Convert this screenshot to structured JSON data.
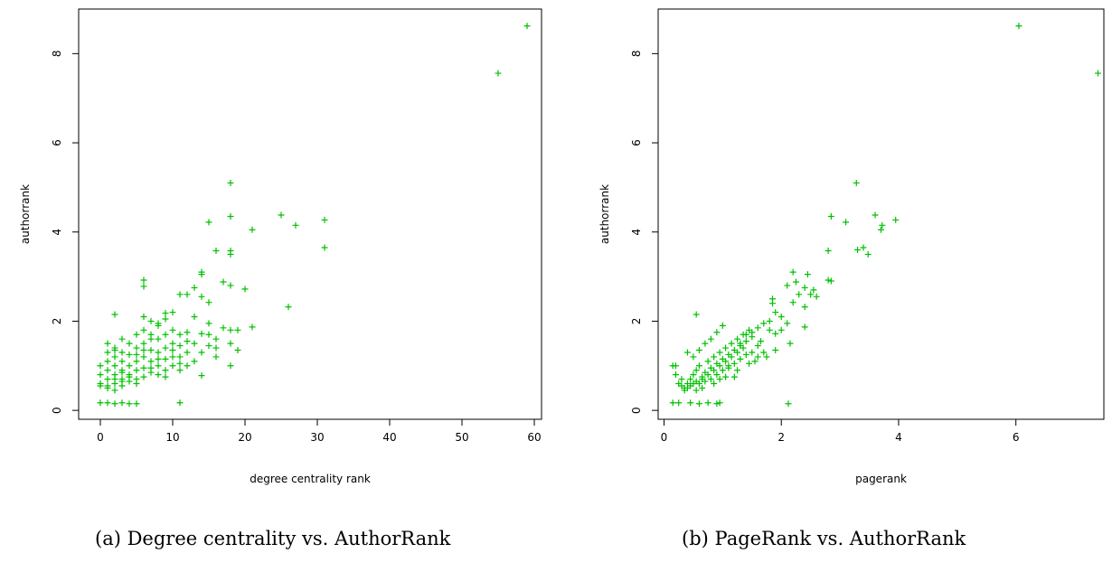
{
  "colors": {
    "points": "#00c000",
    "axis": "#000000",
    "background": "#ffffff"
  },
  "captions": [
    "(a) Degree centrality vs. AuthorRank",
    "(b) PageRank vs. AuthorRank"
  ],
  "chart_data": [
    {
      "type": "scatter",
      "marker": "+",
      "title": "",
      "xlabel": "degree centrality rank",
      "ylabel": "authorrank",
      "xlim": [
        -3,
        61
      ],
      "ylim": [
        -0.2,
        9
      ],
      "xticks": [
        0,
        10,
        20,
        30,
        40,
        50,
        60
      ],
      "yticks": [
        0,
        2,
        4,
        6,
        8
      ],
      "points": [
        [
          59,
          8.62
        ],
        [
          55,
          7.56
        ],
        [
          18,
          5.1
        ],
        [
          25,
          4.38
        ],
        [
          31,
          4.27
        ],
        [
          18,
          4.35
        ],
        [
          15,
          4.22
        ],
        [
          27,
          4.15
        ],
        [
          21,
          4.05
        ],
        [
          31,
          3.65
        ],
        [
          16,
          3.58
        ],
        [
          18,
          3.58
        ],
        [
          18,
          3.5
        ],
        [
          14,
          3.1
        ],
        [
          14,
          3.05
        ],
        [
          6,
          2.92
        ],
        [
          6,
          2.78
        ],
        [
          17,
          2.88
        ],
        [
          18,
          2.8
        ],
        [
          13,
          2.75
        ],
        [
          12,
          2.6
        ],
        [
          20,
          2.72
        ],
        [
          11,
          2.6
        ],
        [
          14,
          2.55
        ],
        [
          15,
          2.42
        ],
        [
          26,
          2.32
        ],
        [
          10,
          2.2
        ],
        [
          9,
          2.18
        ],
        [
          2,
          2.15
        ],
        [
          6,
          2.1
        ],
        [
          13,
          2.1
        ],
        [
          7,
          2.0
        ],
        [
          8,
          1.95
        ],
        [
          15,
          1.95
        ],
        [
          21,
          1.87
        ],
        [
          17,
          1.85
        ],
        [
          18,
          1.8
        ],
        [
          19,
          1.8
        ],
        [
          12,
          1.75
        ],
        [
          14,
          1.72
        ],
        [
          11,
          1.7
        ],
        [
          16,
          1.6
        ],
        [
          18,
          1.5
        ],
        [
          15,
          1.45
        ],
        [
          19,
          1.35
        ],
        [
          12,
          1.3
        ],
        [
          14,
          1.3
        ],
        [
          16,
          1.2
        ],
        [
          13,
          1.1
        ],
        [
          18,
          1.0
        ],
        [
          11,
          0.9
        ],
        [
          14,
          0.78
        ],
        [
          11,
          0.17
        ],
        [
          5,
          0.15
        ],
        [
          0,
          0.17
        ],
        [
          1,
          0.17
        ],
        [
          2,
          0.15
        ],
        [
          3,
          0.17
        ],
        [
          4,
          0.15
        ],
        [
          0,
          1.0
        ],
        [
          0,
          0.8
        ],
        [
          0,
          0.6
        ],
        [
          1,
          1.5
        ],
        [
          1,
          1.3
        ],
        [
          1,
          1.1
        ],
        [
          1,
          0.9
        ],
        [
          1,
          0.7
        ],
        [
          1,
          0.5
        ],
        [
          2,
          1.4
        ],
        [
          2,
          1.2
        ],
        [
          2,
          1.0
        ],
        [
          2,
          0.8
        ],
        [
          2,
          0.6
        ],
        [
          2,
          0.45
        ],
        [
          3,
          1.6
        ],
        [
          3,
          1.3
        ],
        [
          3,
          1.1
        ],
        [
          3,
          0.9
        ],
        [
          3,
          0.7
        ],
        [
          3,
          0.55
        ],
        [
          4,
          1.5
        ],
        [
          4,
          1.25
        ],
        [
          4,
          1.0
        ],
        [
          4,
          0.8
        ],
        [
          4,
          0.65
        ],
        [
          5,
          1.7
        ],
        [
          5,
          1.4
        ],
        [
          5,
          1.1
        ],
        [
          5,
          0.9
        ],
        [
          5,
          0.7
        ],
        [
          6,
          1.8
        ],
        [
          6,
          1.5
        ],
        [
          6,
          1.2
        ],
        [
          6,
          0.95
        ],
        [
          6,
          0.75
        ],
        [
          7,
          1.7
        ],
        [
          7,
          1.35
        ],
        [
          7,
          1.1
        ],
        [
          7,
          0.85
        ],
        [
          8,
          1.9
        ],
        [
          8,
          1.6
        ],
        [
          8,
          1.3
        ],
        [
          8,
          1.0
        ],
        [
          8,
          0.8
        ],
        [
          9,
          1.7
        ],
        [
          9,
          1.4
        ],
        [
          9,
          1.15
        ],
        [
          9,
          0.9
        ],
        [
          10,
          1.8
        ],
        [
          10,
          1.5
        ],
        [
          10,
          1.2
        ],
        [
          10,
          1.0
        ],
        [
          11,
          1.45
        ],
        [
          11,
          1.2
        ],
        [
          12,
          1.55
        ],
        [
          12,
          1.0
        ],
        [
          13,
          1.5
        ],
        [
          15,
          1.7
        ],
        [
          16,
          1.4
        ],
        [
          9,
          2.05
        ],
        [
          7,
          1.6
        ],
        [
          5,
          1.25
        ],
        [
          3,
          0.85
        ],
        [
          4,
          0.75
        ],
        [
          1,
          0.55
        ],
        [
          2,
          0.7
        ],
        [
          0,
          0.55
        ],
        [
          6,
          1.35
        ],
        [
          8,
          1.15
        ],
        [
          10,
          1.35
        ],
        [
          9,
          0.75
        ],
        [
          11,
          1.05
        ],
        [
          7,
          0.95
        ],
        [
          5,
          0.6
        ],
        [
          3,
          0.65
        ],
        [
          2,
          1.35
        ]
      ]
    },
    {
      "type": "scatter",
      "marker": "+",
      "title": "",
      "xlabel": "pagerank",
      "ylabel": "authorrank",
      "xlim": [
        -0.1,
        7.5
      ],
      "ylim": [
        -0.2,
        9
      ],
      "xticks": [
        0,
        2,
        4,
        6
      ],
      "yticks": [
        0,
        2,
        4,
        6,
        8
      ],
      "points": [
        [
          6.05,
          8.62
        ],
        [
          7.4,
          7.56
        ],
        [
          3.28,
          5.1
        ],
        [
          3.6,
          4.38
        ],
        [
          3.95,
          4.27
        ],
        [
          2.85,
          4.35
        ],
        [
          3.1,
          4.22
        ],
        [
          3.72,
          4.15
        ],
        [
          3.7,
          4.05
        ],
        [
          3.4,
          3.65
        ],
        [
          2.8,
          3.58
        ],
        [
          3.3,
          3.6
        ],
        [
          3.48,
          3.5
        ],
        [
          2.2,
          3.1
        ],
        [
          2.45,
          3.05
        ],
        [
          2.8,
          2.92
        ],
        [
          2.85,
          2.9
        ],
        [
          2.25,
          2.88
        ],
        [
          2.1,
          2.8
        ],
        [
          2.4,
          2.75
        ],
        [
          2.3,
          2.6
        ],
        [
          2.55,
          2.7
        ],
        [
          2.5,
          2.6
        ],
        [
          2.6,
          2.55
        ],
        [
          2.2,
          2.42
        ],
        [
          2.4,
          2.32
        ],
        [
          1.9,
          2.2
        ],
        [
          1.85,
          2.4
        ],
        [
          1.85,
          2.5
        ],
        [
          0.55,
          2.15
        ],
        [
          2.0,
          2.1
        ],
        [
          1.8,
          2.0
        ],
        [
          2.1,
          1.95
        ],
        [
          1.7,
          1.95
        ],
        [
          2.4,
          1.87
        ],
        [
          1.6,
          1.85
        ],
        [
          1.8,
          1.8
        ],
        [
          2.0,
          1.8
        ],
        [
          1.5,
          1.75
        ],
        [
          1.9,
          1.72
        ],
        [
          1.4,
          1.7
        ],
        [
          1.3,
          1.5
        ],
        [
          2.15,
          1.5
        ],
        [
          1.6,
          1.45
        ],
        [
          1.9,
          1.35
        ],
        [
          1.7,
          1.3
        ],
        [
          1.75,
          1.2
        ],
        [
          1.55,
          1.1
        ],
        [
          1.1,
          1.0
        ],
        [
          2.12,
          0.15
        ],
        [
          0.15,
          0.17
        ],
        [
          0.25,
          0.17
        ],
        [
          0.45,
          0.17
        ],
        [
          0.6,
          0.15
        ],
        [
          0.75,
          0.17
        ],
        [
          0.9,
          0.15
        ],
        [
          0.95,
          0.17
        ],
        [
          0.15,
          1.0
        ],
        [
          0.2,
          0.8
        ],
        [
          0.25,
          0.6
        ],
        [
          0.3,
          0.55
        ],
        [
          0.35,
          0.5
        ],
        [
          0.4,
          0.6
        ],
        [
          0.45,
          0.7
        ],
        [
          0.5,
          0.8
        ],
        [
          0.55,
          0.9
        ],
        [
          0.6,
          1.0
        ],
        [
          0.65,
          0.7
        ],
        [
          0.7,
          0.85
        ],
        [
          0.75,
          1.1
        ],
        [
          0.8,
          0.95
        ],
        [
          0.85,
          1.2
        ],
        [
          0.9,
          1.05
        ],
        [
          0.95,
          1.3
        ],
        [
          1.0,
          1.15
        ],
        [
          1.05,
          1.4
        ],
        [
          1.1,
          1.25
        ],
        [
          1.15,
          1.5
        ],
        [
          1.2,
          1.35
        ],
        [
          1.25,
          1.6
        ],
        [
          1.3,
          1.45
        ],
        [
          1.35,
          1.7
        ],
        [
          1.4,
          1.55
        ],
        [
          1.45,
          1.8
        ],
        [
          1.5,
          1.65
        ],
        [
          0.3,
          0.7
        ],
        [
          0.35,
          0.45
        ],
        [
          0.4,
          0.5
        ],
        [
          0.45,
          0.55
        ],
        [
          0.5,
          0.6
        ],
        [
          0.55,
          0.65
        ],
        [
          0.6,
          0.6
        ],
        [
          0.65,
          0.75
        ],
        [
          0.7,
          0.65
        ],
        [
          0.75,
          0.8
        ],
        [
          0.8,
          0.7
        ],
        [
          0.85,
          0.9
        ],
        [
          0.9,
          0.8
        ],
        [
          0.95,
          1.0
        ],
        [
          1.0,
          0.9
        ],
        [
          1.05,
          1.1
        ],
        [
          1.1,
          0.95
        ],
        [
          1.15,
          1.2
        ],
        [
          1.2,
          1.05
        ],
        [
          1.25,
          1.3
        ],
        [
          1.3,
          1.15
        ],
        [
          1.35,
          1.4
        ],
        [
          1.4,
          1.25
        ],
        [
          0.5,
          1.2
        ],
        [
          0.6,
          1.35
        ],
        [
          0.7,
          1.5
        ],
        [
          0.8,
          1.6
        ],
        [
          0.9,
          1.75
        ],
        [
          1.0,
          1.9
        ],
        [
          0.2,
          1.0
        ],
        [
          0.4,
          1.3
        ],
        [
          0.55,
          0.45
        ],
        [
          0.65,
          0.5
        ],
        [
          0.85,
          0.6
        ],
        [
          1.05,
          0.75
        ],
        [
          1.25,
          0.9
        ],
        [
          1.45,
          1.05
        ],
        [
          1.6,
          1.2
        ],
        [
          1.2,
          0.75
        ],
        [
          1.5,
          1.3
        ],
        [
          1.65,
          1.55
        ],
        [
          0.95,
          0.7
        ]
      ]
    }
  ]
}
